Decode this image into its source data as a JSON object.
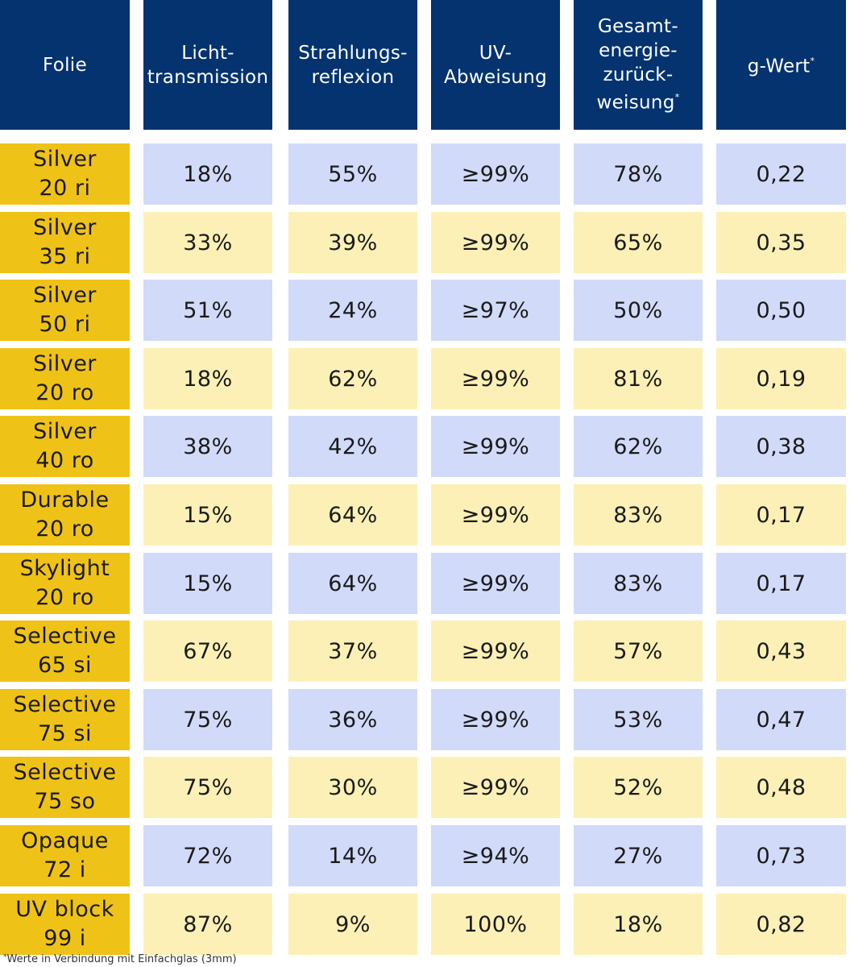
{
  "headers": {
    "col1": [
      "Folie"
    ],
    "col2": [
      "Licht-",
      "transmission"
    ],
    "col3": [
      "Strahlungs-",
      "reflexion"
    ],
    "col4": [
      "UV-",
      "Abweisung"
    ],
    "col5": [
      "Gesamt-",
      "energie-",
      "zurück-",
      "weisung"
    ],
    "col5_mark": "*",
    "col6": [
      "g-Wert"
    ],
    "col6_mark": "*"
  },
  "rows": [
    {
      "name": [
        "Silver",
        "20 ri"
      ],
      "licht": "18%",
      "strahlung": "55%",
      "uv": "≥99%",
      "gesamt": "78%",
      "g": "0,22",
      "tint": "blue"
    },
    {
      "name": [
        "Silver",
        "35 ri"
      ],
      "licht": "33%",
      "strahlung": "39%",
      "uv": "≥99%",
      "gesamt": "65%",
      "g": "0,35",
      "tint": "yellow"
    },
    {
      "name": [
        "Silver",
        "50 ri"
      ],
      "licht": "51%",
      "strahlung": "24%",
      "uv": "≥97%",
      "gesamt": "50%",
      "g": "0,50",
      "tint": "blue"
    },
    {
      "name": [
        "Silver",
        "20 ro"
      ],
      "licht": "18%",
      "strahlung": "62%",
      "uv": "≥99%",
      "gesamt": "81%",
      "g": "0,19",
      "tint": "yellow"
    },
    {
      "name": [
        "Silver",
        "40 ro"
      ],
      "licht": "38%",
      "strahlung": "42%",
      "uv": "≥99%",
      "gesamt": "62%",
      "g": "0,38",
      "tint": "blue"
    },
    {
      "name": [
        "Durable",
        "20 ro"
      ],
      "licht": "15%",
      "strahlung": "64%",
      "uv": "≥99%",
      "gesamt": "83%",
      "g": "0,17",
      "tint": "yellow"
    },
    {
      "name": [
        "Skylight",
        "20 ro"
      ],
      "licht": "15%",
      "strahlung": "64%",
      "uv": "≥99%",
      "gesamt": "83%",
      "g": "0,17",
      "tint": "blue"
    },
    {
      "name": [
        "Selective",
        "65 si"
      ],
      "licht": "67%",
      "strahlung": "37%",
      "uv": "≥99%",
      "gesamt": "57%",
      "g": "0,43",
      "tint": "yellow"
    },
    {
      "name": [
        "Selective",
        "75 si"
      ],
      "licht": "75%",
      "strahlung": "36%",
      "uv": "≥99%",
      "gesamt": "53%",
      "g": "0,47",
      "tint": "blue"
    },
    {
      "name": [
        "Selective",
        "75 so"
      ],
      "licht": "75%",
      "strahlung": "30%",
      "uv": "≥99%",
      "gesamt": "52%",
      "g": "0,48",
      "tint": "yellow"
    },
    {
      "name": [
        "Opaque",
        "72 i"
      ],
      "licht": "72%",
      "strahlung": "14%",
      "uv": "≥94%",
      "gesamt": "27%",
      "g": "0,73",
      "tint": "blue"
    },
    {
      "name": [
        "UV block",
        "99 i"
      ],
      "licht": "87%",
      "strahlung": "9%",
      "uv": "100%",
      "gesamt": "18%",
      "g": "0,82",
      "tint": "yellow"
    }
  ],
  "footnote": {
    "mark": "*",
    "text": "Werte in Verbindung mit Einfachglas (3mm)"
  },
  "colors": {
    "header_bg": "#04336f",
    "name_bg": "#efc217",
    "row_blue": "#d2daf9",
    "row_yellow": "#fcf0b6"
  }
}
